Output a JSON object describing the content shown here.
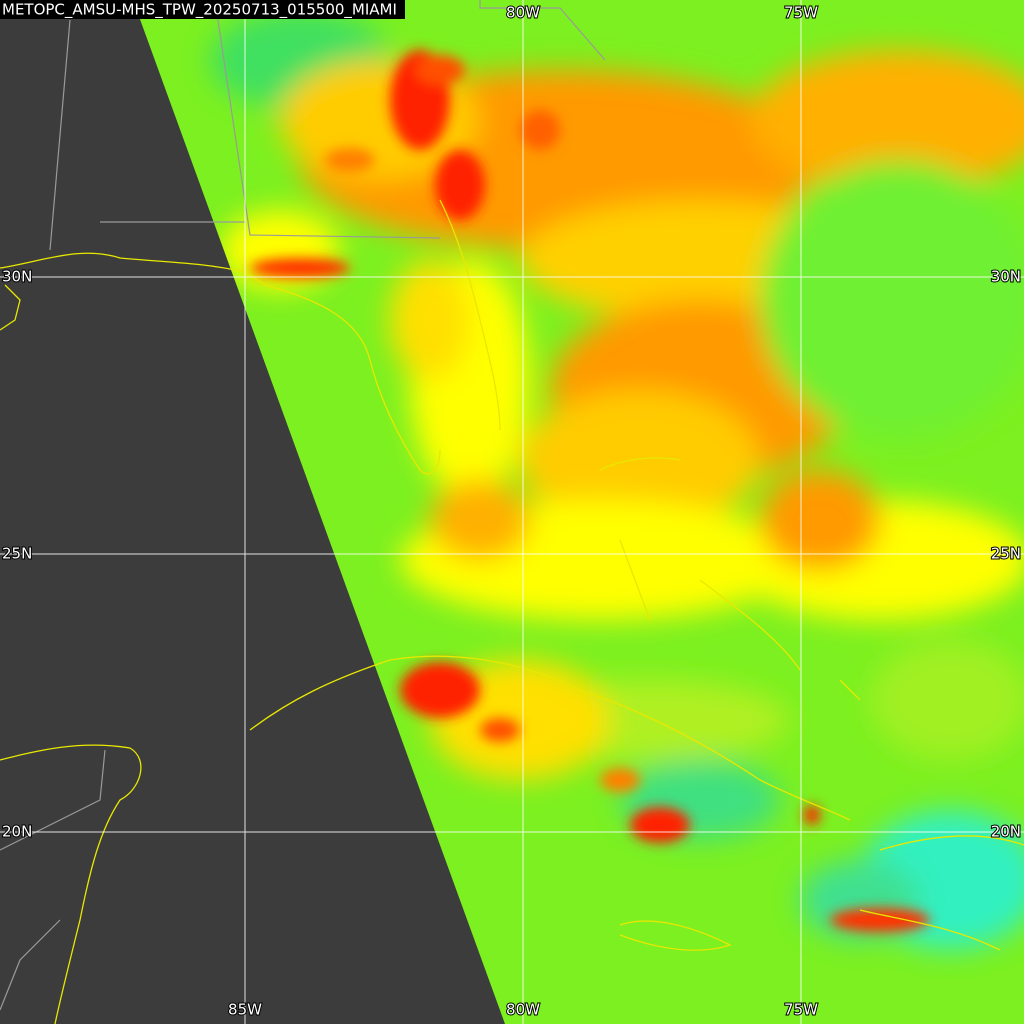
{
  "title": "METOPC_AMSU-MHS_TPW_20250713_015500_MIAMI",
  "grid_labels": {
    "top": [
      "80W",
      "75W"
    ],
    "bottom": [
      "85W",
      "80W",
      "75W"
    ],
    "left": [
      "30N",
      "25N",
      "20N"
    ],
    "right": [
      "30N",
      "25N",
      "20N"
    ]
  }
}
